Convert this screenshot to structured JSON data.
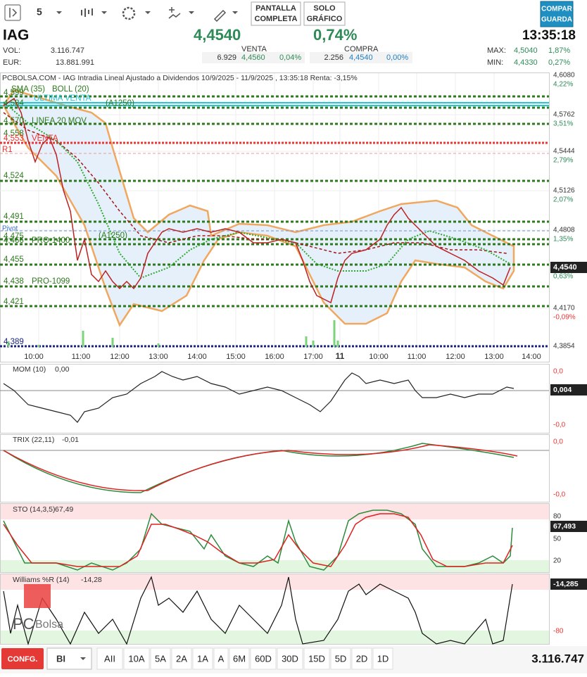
{
  "toolbar": {
    "interval": "5",
    "fullscreen": [
      "PANTALLA",
      "COMPLETA"
    ],
    "chart_only": [
      "SOLO",
      "GRÁFICO"
    ],
    "compare": [
      "COMPAR",
      "GUARDA"
    ]
  },
  "header": {
    "ticker": "IAG",
    "price": "4,4540",
    "change": "0,74%",
    "time": "13:35:18",
    "vol_label": "VOL:",
    "vol": "3.116.747",
    "eur_label": "EUR:",
    "eur": "13.881.991",
    "sell_label": "VENTA",
    "sell_qty": "6.929",
    "sell_price": "4,4560",
    "sell_pct": "0,04%",
    "buy_label": "COMPRA",
    "buy_qty": "2.256",
    "buy_price": "4,4540",
    "buy_pct": "0,00%",
    "max_label": "MAX:",
    "max": "4,5040",
    "max_pct": "1,87%",
    "min_label": "MIN:",
    "min": "4,4330",
    "min_pct": "0,27%"
  },
  "chart": {
    "title": "PCBOLSA.COM - IAG Intradia Lineal Ajustado a Dividendos 10/9/2025 - 11/9/2025 , 13:35:18 Renta: -3,15%",
    "price_axis": [
      {
        "price": "4,6080",
        "pct": "4,22%"
      },
      {
        "price": "4,5762",
        "pct": "3,51%"
      },
      {
        "price": "4,5444",
        "pct": "2,79%"
      },
      {
        "price": "4,5126",
        "pct": "2,07%"
      },
      {
        "price": "4,4808",
        "pct": "1,35%"
      },
      {
        "price": "4,4540",
        "pct": "0,63%"
      },
      {
        "price": "4,4170",
        "pct": "-0,09%"
      },
      {
        "price": "4,3854",
        "pct": ""
      }
    ],
    "levels": [
      "4,599",
      "SMA (35)",
      "BOLL (20)",
      "4,584",
      "ULTIMA VENTA",
      "(A1250)",
      "4,570",
      "LINEA 20 MOV",
      "4,558",
      "4,553",
      "VENTA",
      "R1",
      "4,524",
      "4,491",
      "Pivot",
      "4,475",
      "4,466",
      "PRO-1400",
      "(A1250)",
      "4,455",
      "4,438",
      "PRO-1099",
      "4,421",
      "4,389"
    ],
    "x_labels": [
      "10:00",
      "11:00",
      "12:00",
      "13:00",
      "14:00",
      "15:00",
      "16:00",
      "17:00",
      "11",
      "10:00",
      "11:00",
      "12:00",
      "13:00",
      "14:00"
    ]
  },
  "panels": [
    {
      "name": "MOM (10)",
      "value": "0,00",
      "axis": [
        "0,0",
        "0,004",
        "-0,0"
      ]
    },
    {
      "name": "TRIX (22,11)",
      "value": "-0,01",
      "axis": [
        "0,0",
        "-0,0"
      ]
    },
    {
      "name": "STO (14,3,5)",
      "value": "67,49",
      "axis": [
        "80",
        "67,493",
        "50",
        "20"
      ]
    },
    {
      "name": "Williams %R (14)",
      "value": "-14,28",
      "axis": [
        "-14,285",
        "-80"
      ]
    }
  ],
  "footer": {
    "config": "CONFG.",
    "mode": "BI",
    "ranges": [
      "AII",
      "10A",
      "5A",
      "2A",
      "1A",
      "A",
      "6M",
      "60D",
      "30D",
      "15D",
      "5D",
      "2D",
      "1D"
    ],
    "volume": "3.116.747"
  }
}
